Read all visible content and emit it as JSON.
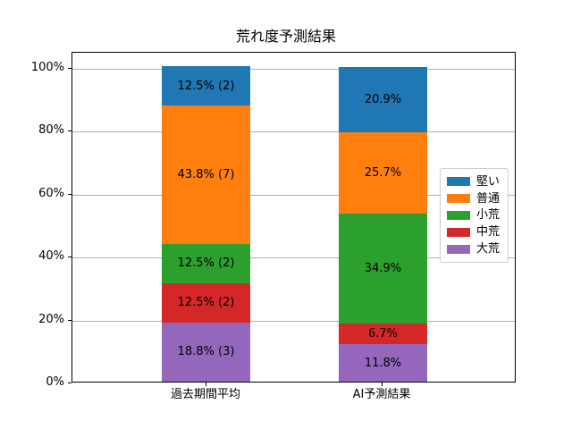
{
  "title": "荒れ度予測結果",
  "chart_data": {
    "type": "bar",
    "stacked": true,
    "title": "荒れ度予測結果",
    "categories": [
      "過去期間平均",
      "AI予測結果"
    ],
    "series": [
      {
        "name": "堅い",
        "color": "#1f77b4",
        "values": [
          12.5,
          20.9
        ],
        "labels": [
          "12.5% (2)",
          "20.9%"
        ]
      },
      {
        "name": "普通",
        "color": "#ff7f0e",
        "values": [
          43.8,
          25.7
        ],
        "labels": [
          "43.8% (7)",
          "25.7%"
        ]
      },
      {
        "name": "小荒",
        "color": "#2ca02c",
        "values": [
          12.5,
          34.9
        ],
        "labels": [
          "12.5% (2)",
          "34.9%"
        ]
      },
      {
        "name": "中荒",
        "color": "#d62728",
        "values": [
          12.5,
          6.7
        ],
        "labels": [
          "12.5% (2)",
          "6.7%"
        ]
      },
      {
        "name": "大荒",
        "color": "#9467bd",
        "values": [
          18.8,
          11.8
        ],
        "labels": [
          "18.8% (3)",
          "11.8%"
        ]
      }
    ],
    "xlabel": "",
    "ylabel": "",
    "y_ticks": [
      {
        "value": 0,
        "label": "0%"
      },
      {
        "value": 20,
        "label": "20%"
      },
      {
        "value": 40,
        "label": "40%"
      },
      {
        "value": 60,
        "label": "60%"
      },
      {
        "value": 80,
        "label": "80%"
      },
      {
        "value": 100,
        "label": "100%"
      }
    ],
    "ylim": [
      0,
      105
    ],
    "grid": "y",
    "legend": {
      "position": "center-right",
      "entries": [
        "堅い",
        "普通",
        "小荒",
        "中荒",
        "大荒"
      ]
    }
  }
}
